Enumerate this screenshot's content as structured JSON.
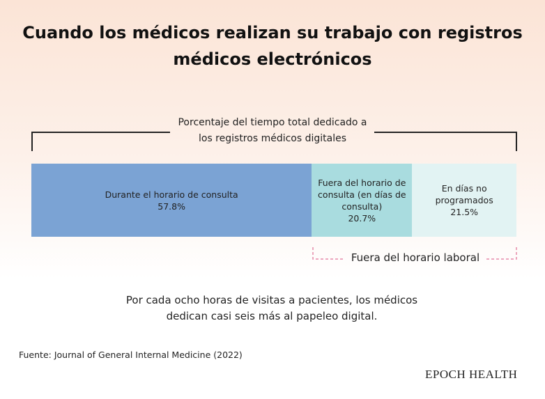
{
  "chart_data": {
    "type": "bar",
    "stacked": true,
    "orientation": "horizontal",
    "title": "Cuando los médicos realizan su trabajo con registros médicos electrónicos",
    "subtitle": "Porcentaje del tiempo total dedicado a los registros médicos digitales",
    "series": [
      {
        "name": "Durante el horario de consulta",
        "color": "#7ba3d4",
        "values": [
          57.8
        ],
        "value_labels": [
          "57.8%"
        ]
      },
      {
        "name": "Fuera del horario de consulta (en días de consulta)",
        "color": "#a9dcdf",
        "values": [
          20.7
        ],
        "value_labels": [
          "20.7%"
        ]
      },
      {
        "name": "En días no programados",
        "color": "#e2f3f3",
        "values": [
          21.5
        ],
        "value_labels": [
          "21.5%"
        ]
      }
    ],
    "xlim": [
      0,
      100
    ],
    "annotation": "Fuera del horario laboral",
    "note": "Por cada ocho horas de visitas a pacientes, los médicos dedican casi seis más al papeleo digital.",
    "source": "Fuente: Journal of General Internal Medicine (2022)",
    "brand": "EPOCH HEALTH"
  }
}
